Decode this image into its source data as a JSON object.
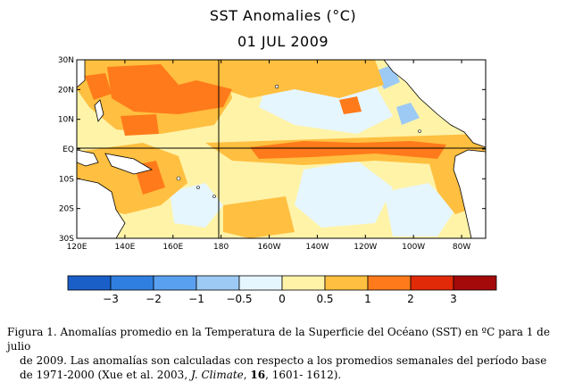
{
  "title": "SST Anomalies (°C)",
  "date": "01 JUL 2009",
  "map": {
    "lat_labels": [
      "30N",
      "20N",
      "10N",
      "EQ",
      "10S",
      "20S",
      "30S"
    ],
    "lon_labels": [
      "120E",
      "140E",
      "160E",
      "180",
      "160W",
      "140W",
      "120W",
      "100W",
      "80W"
    ]
  },
  "colorbar": {
    "labels": [
      "−3",
      "−2",
      "−1",
      "−0.5",
      "0",
      "0.5",
      "1",
      "2",
      "3"
    ],
    "colors": [
      "#1a5fc8",
      "#2f7fe0",
      "#5aa0f0",
      "#9ccaf5",
      "#e6f6ff",
      "#fff3a8",
      "#ffbf40",
      "#ff7a1a",
      "#e02a08",
      "#a50a0a"
    ]
  },
  "caption": {
    "line1": "Figura 1. Anomalías promedio en la Temperatura de la Superficie del Océano (SST) en ºC  para 1 de julio",
    "line2": "de 2009.  Las anomalías son calculadas con respecto a los promedios semanales del período base",
    "line3_a": "de 1971-2000 (Xue et al. 2003, ",
    "line3_journal": "J. Climate",
    "line3_b": ", ",
    "line3_vol": "16",
    "line3_c": ", 1601- 1612)."
  }
}
